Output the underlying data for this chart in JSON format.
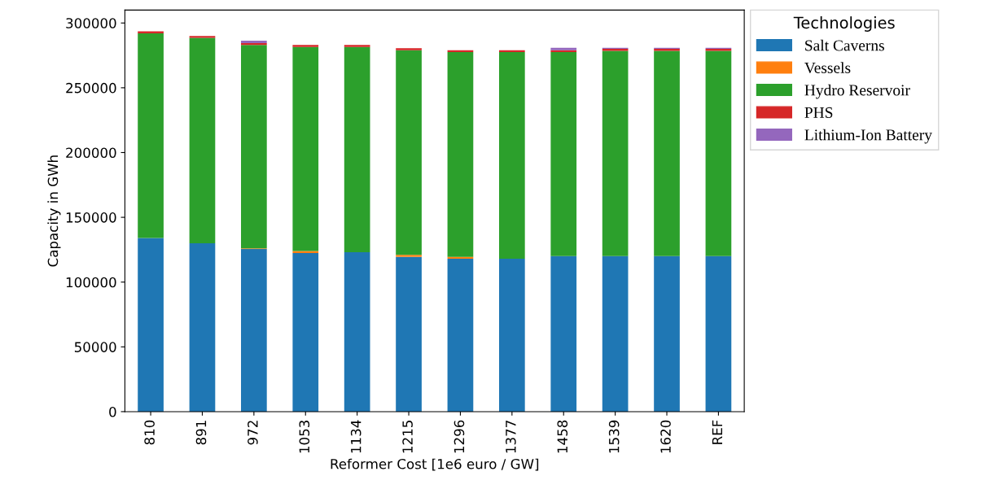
{
  "chart_data": {
    "type": "bar",
    "stacked": true,
    "xlabel": "Reformer Cost [1e6 euro / GW]",
    "ylabel": "Capacity in GWh",
    "legend_title": "Technologies",
    "legend": "right",
    "categories": [
      "810",
      "891",
      "972",
      "1053",
      "1134",
      "1215",
      "1296",
      "1377",
      "1458",
      "1539",
      "1620",
      "REF"
    ],
    "series": [
      {
        "name": "Salt Caverns",
        "color": "#1f77b4",
        "values": [
          134000,
          130000,
          125500,
          122500,
          123000,
          119500,
          118000,
          118000,
          120000,
          120000,
          120000,
          120000
        ]
      },
      {
        "name": "Vessels",
        "color": "#ff7f0e",
        "values": [
          0,
          0,
          500,
          1500,
          0,
          1500,
          1500,
          0,
          0,
          0,
          0,
          0
        ]
      },
      {
        "name": "Hydro Reservoir",
        "color": "#2ca02c",
        "values": [
          158000,
          158500,
          157000,
          157500,
          158500,
          158000,
          158000,
          159500,
          157500,
          158500,
          158500,
          158500
        ]
      },
      {
        "name": "PHS",
        "color": "#d62728",
        "values": [
          1500,
          1500,
          1500,
          1500,
          1500,
          1500,
          1500,
          1500,
          1500,
          1500,
          1500,
          1500
        ]
      },
      {
        "name": "Lithium-Ion Battery",
        "color": "#9467bd",
        "values": [
          null,
          null,
          1800,
          null,
          null,
          null,
          null,
          null,
          1800,
          800,
          800,
          800
        ]
      }
    ],
    "ylim": [
      0,
      310000
    ],
    "yticks": [
      0,
      50000,
      100000,
      150000,
      200000,
      250000,
      300000
    ],
    "grid": false
  }
}
